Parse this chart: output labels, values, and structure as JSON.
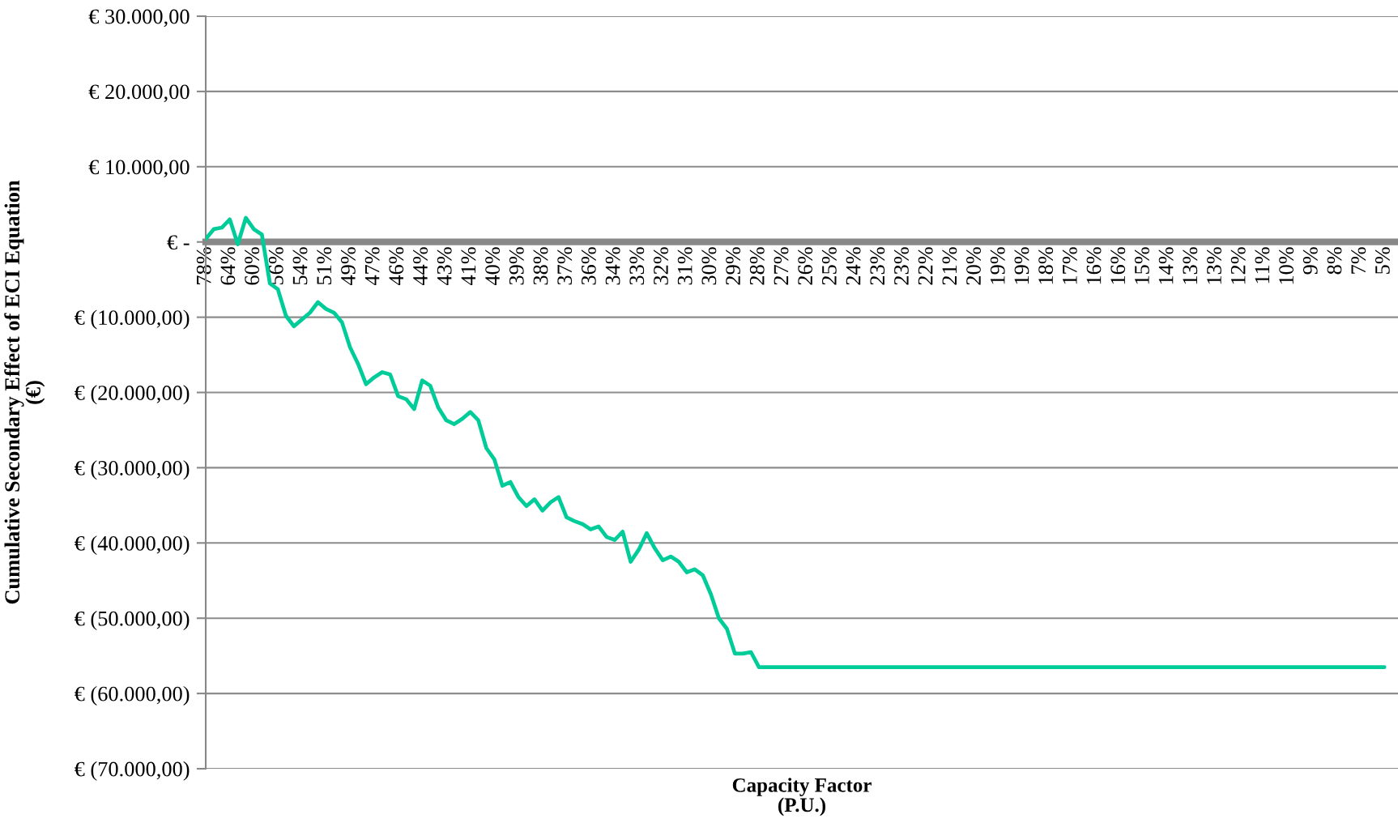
{
  "chart_data": {
    "type": "line",
    "xlabel": "Capacity Factor\n(P.U.)",
    "ylabel": "Cumulative Secondary Effect of ECI Equation\n(€)",
    "categories": [
      "78%",
      null,
      null,
      "64%",
      null,
      null,
      "60%",
      null,
      null,
      "56%",
      null,
      null,
      "54%",
      null,
      null,
      "51%",
      null,
      null,
      "49%",
      null,
      null,
      "47%",
      null,
      null,
      "46%",
      null,
      null,
      "44%",
      null,
      null,
      "43%",
      null,
      null,
      "41%",
      null,
      null,
      "40%",
      null,
      null,
      "39%",
      null,
      null,
      "38%",
      null,
      null,
      "37%",
      null,
      null,
      "36%",
      null,
      null,
      "34%",
      null,
      null,
      "33%",
      null,
      null,
      "32%",
      null,
      null,
      "31%",
      null,
      null,
      "30%",
      null,
      null,
      "29%",
      null,
      null,
      "28%",
      null,
      null,
      "27%",
      null,
      null,
      "26%",
      null,
      null,
      "25%",
      null,
      null,
      "24%",
      null,
      null,
      "23%",
      null,
      null,
      "23%",
      null,
      null,
      "22%",
      null,
      null,
      "21%",
      null,
      null,
      "20%",
      null,
      null,
      "19%",
      null,
      null,
      "19%",
      null,
      null,
      "18%",
      null,
      null,
      "17%",
      null,
      null,
      "16%",
      null,
      null,
      "16%",
      null,
      null,
      "15%",
      null,
      null,
      "14%",
      null,
      null,
      "13%",
      null,
      null,
      "13%",
      null,
      null,
      "12%",
      null,
      null,
      "11%",
      null,
      null,
      "10%",
      null,
      null,
      "9%",
      null,
      null,
      "8%",
      null,
      null,
      "7%",
      null,
      null,
      "5%"
    ],
    "series": [
      {
        "color": "#00cc99",
        "values": [
          400,
          1700,
          1900,
          3000,
          -300,
          3200,
          1700,
          1000,
          -5500,
          -6300,
          -9800,
          -11200,
          -10300,
          -9400,
          -8000,
          -8900,
          -9400,
          -10700,
          -14000,
          -16200,
          -18900,
          -18000,
          -17300,
          -17600,
          -20500,
          -20900,
          -22200,
          -18400,
          -19100,
          -22000,
          -23700,
          -24200,
          -23500,
          -22600,
          -23700,
          -27400,
          -28900,
          -32400,
          -31900,
          -33900,
          -35100,
          -34200,
          -35700,
          -34600,
          -33900,
          -36600,
          -37100,
          -37500,
          -38200,
          -37800,
          -39200,
          -39600,
          -38500,
          -42500,
          -40900,
          -38700,
          -40700,
          -42300,
          -41800,
          -42500,
          -43900,
          -43500,
          -44300,
          -46800,
          -50000,
          -51400,
          -54700,
          -54700,
          -54500,
          -56500,
          -56500,
          -56500,
          -56500,
          -56500,
          -56500,
          -56500,
          -56500,
          -56500,
          -56500,
          -56500,
          -56500,
          -56500,
          -56500,
          -56500,
          -56500,
          -56500,
          -56500,
          -56500,
          -56500,
          -56500,
          -56500,
          -56500,
          -56500,
          -56500,
          -56500,
          -56500,
          -56500,
          -56500,
          -56500,
          -56500,
          -56500,
          -56500,
          -56500,
          -56500,
          -56500,
          -56500,
          -56500,
          -56500,
          -56500,
          -56500,
          -56500,
          -56500,
          -56500,
          -56500,
          -56500,
          -56500,
          -56500,
          -56500,
          -56500,
          -56500,
          -56500,
          -56500,
          -56500,
          -56500,
          -56500,
          -56500,
          -56500,
          -56500,
          -56500,
          -56500,
          -56500,
          -56500,
          -56500,
          -56500,
          -56500,
          -56500,
          -56500,
          -56500,
          -56500,
          -56500,
          -56500,
          -56500,
          -56500,
          -56500,
          -56500,
          -56500,
          -56500,
          -56500
        ]
      }
    ],
    "ylim": [
      -70000,
      30000
    ],
    "yticks": [
      {
        "value": 30000,
        "label": "€ 30.000,00"
      },
      {
        "value": 20000,
        "label": "€ 20.000,00"
      },
      {
        "value": 10000,
        "label": "€ 10.000,00"
      },
      {
        "value": 0,
        "label": "€ -"
      },
      {
        "value": -10000,
        "label": "€ (10.000,00)"
      },
      {
        "value": -20000,
        "label": "€ (20.000,00)"
      },
      {
        "value": -30000,
        "label": "€ (30.000,00)"
      },
      {
        "value": -40000,
        "label": "€ (40.000,00)"
      },
      {
        "value": -50000,
        "label": "€ (50.000,00)"
      },
      {
        "value": -60000,
        "label": "€ (60.000,00)"
      },
      {
        "value": -70000,
        "label": "€ (70.000,00)"
      }
    ],
    "grid": "y",
    "line_style": "solid",
    "marker": "none",
    "legend": false
  }
}
